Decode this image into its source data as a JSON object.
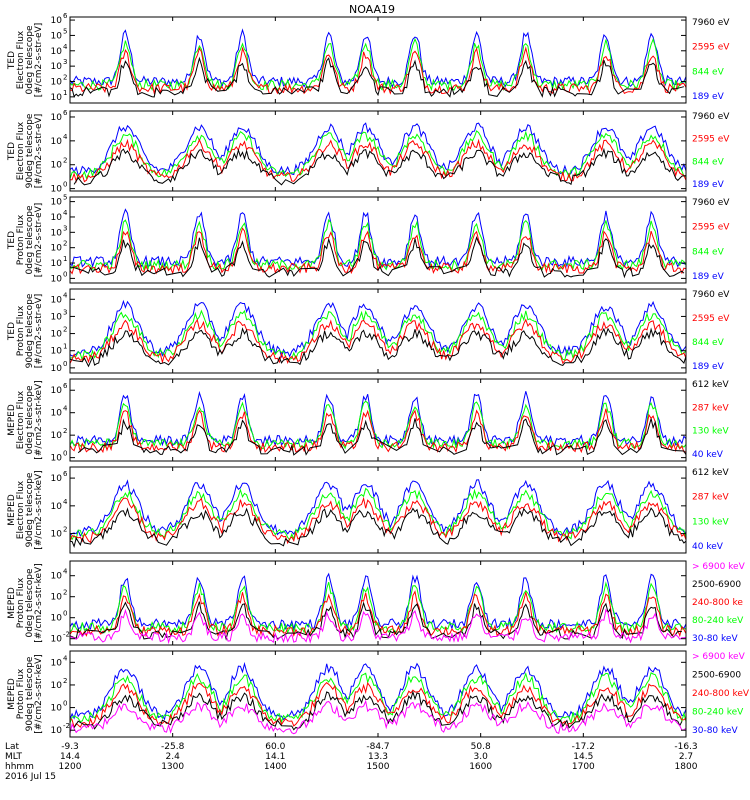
{
  "title": "NOAA19",
  "colors": {
    "blue": "#0000ff",
    "red": "#ff0000",
    "green": "#00ff00",
    "black": "#000000",
    "magenta": "#ff00ff"
  },
  "chart_data": {
    "type": "line",
    "title": "NOAA19",
    "x_ticks": [
      "1200",
      "1300",
      "1400",
      "1500",
      "1600",
      "1700",
      "1800"
    ],
    "x_axis_rows": [
      {
        "label": "Lat",
        "values": [
          "-9.3",
          "-25.8",
          "60.0",
          "-84.7",
          "50.8",
          "-17.2",
          "-16.3"
        ]
      },
      {
        "label": "MLT",
        "values": [
          "14.4",
          "2.4",
          "14.1",
          "13.3",
          "3.0",
          "14.5",
          "2.7"
        ]
      },
      {
        "label": "hhmm",
        "values": [
          "1200",
          "1300",
          "1400",
          "1500",
          "1600",
          "1700",
          "1800"
        ]
      }
    ],
    "date_label": "2016 Jul 15",
    "panels": [
      {
        "ylabel": [
          "TED",
          "Electron Flux",
          "0deg telescope",
          "[#/cm2-s-str-eV]"
        ],
        "yticks": [
          {
            "e": 1,
            "v": "10"
          },
          {
            "e": 2,
            "v": "10"
          },
          {
            "e": 3,
            "v": "10"
          },
          {
            "e": 4,
            "v": "10"
          },
          {
            "e": 5,
            "v": "10"
          },
          {
            "e": 6,
            "v": "10"
          }
        ],
        "ymin_exp": 0.6,
        "ymax_exp": 6.2,
        "legend": [
          {
            "label": "7960 eV",
            "color": "black"
          },
          {
            "label": "2595 eV",
            "color": "red"
          },
          {
            "label": "844 eV",
            "color": "green"
          },
          {
            "label": "189 eV",
            "color": "blue"
          }
        ]
      },
      {
        "ylabel": [
          "TED",
          "Electron Flux",
          "90deg telescope",
          "[#/cm2-s-str-eV]"
        ],
        "yticks": [
          {
            "e": 0,
            "v": "10"
          },
          {
            "e": 2,
            "v": "10"
          },
          {
            "e": 4,
            "v": "10"
          },
          {
            "e": 6,
            "v": "10"
          }
        ],
        "ymin_exp": -0.2,
        "ymax_exp": 6.5,
        "legend": [
          {
            "label": "7960 eV",
            "color": "black"
          },
          {
            "label": "2595 eV",
            "color": "red"
          },
          {
            "label": "844 eV",
            "color": "green"
          },
          {
            "label": "189 eV",
            "color": "blue"
          }
        ]
      },
      {
        "ylabel": [
          "TED",
          "Proton Flux",
          "0deg telescope",
          "[#/cm2-s-str-eV]"
        ],
        "yticks": [
          {
            "e": 0,
            "v": "10"
          },
          {
            "e": 1,
            "v": "10"
          },
          {
            "e": 2,
            "v": "10"
          },
          {
            "e": 3,
            "v": "10"
          },
          {
            "e": 4,
            "v": "10"
          },
          {
            "e": 5,
            "v": "10"
          }
        ],
        "ymin_exp": -0.3,
        "ymax_exp": 5.3,
        "legend": [
          {
            "label": "7960 eV",
            "color": "black"
          },
          {
            "label": "2595 eV",
            "color": "red"
          },
          {
            "label": "844 eV",
            "color": "green"
          },
          {
            "label": "189 eV",
            "color": "blue"
          }
        ]
      },
      {
        "ylabel": [
          "TED",
          "Proton Flux",
          "90deg telescope",
          "[#/cm2-s-str-eV]"
        ],
        "yticks": [
          {
            "e": 0,
            "v": "10"
          },
          {
            "e": 1,
            "v": "10"
          },
          {
            "e": 2,
            "v": "10"
          },
          {
            "e": 3,
            "v": "10"
          },
          {
            "e": 4,
            "v": "10"
          }
        ],
        "ymin_exp": -0.3,
        "ymax_exp": 4.6,
        "legend": [
          {
            "label": "7960 eV",
            "color": "black"
          },
          {
            "label": "2595 eV",
            "color": "red"
          },
          {
            "label": "844 eV",
            "color": "green"
          },
          {
            "label": "189 eV",
            "color": "blue"
          }
        ]
      },
      {
        "ylabel": [
          "MEPED",
          "Electron Flux",
          "0deg telescope",
          "[#/cm2-s-str-keV]"
        ],
        "yticks": [
          {
            "e": 0,
            "v": "10"
          },
          {
            "e": 2,
            "v": "10"
          },
          {
            "e": 4,
            "v": "10"
          },
          {
            "e": 6,
            "v": "10"
          }
        ],
        "ymin_exp": -0.3,
        "ymax_exp": 7.0,
        "legend": [
          {
            "label": "612 keV",
            "color": "black"
          },
          {
            "label": "287 keV",
            "color": "red"
          },
          {
            "label": "130 keV",
            "color": "green"
          },
          {
            "label": "40 keV",
            "color": "blue"
          }
        ]
      },
      {
        "ylabel": [
          "MEPED",
          "Electron Flux",
          "90deg telescope",
          "[#/cm2-s-str-keV]"
        ],
        "yticks": [
          {
            "e": 0,
            "v": "10"
          },
          {
            "e": 2,
            "v": "10"
          },
          {
            "e": 4,
            "v": "10"
          },
          {
            "e": 6,
            "v": "10"
          }
        ],
        "ymin_exp": 0.6,
        "ymax_exp": 6.8,
        "legend": [
          {
            "label": "612 keV",
            "color": "black"
          },
          {
            "label": "287 keV",
            "color": "red"
          },
          {
            "label": "130 keV",
            "color": "green"
          },
          {
            "label": "40 keV",
            "color": "blue"
          }
        ]
      },
      {
        "ylabel": [
          "MEPED",
          "Proton Flux",
          "0deg telescope",
          "[#/cm2-s-str-keV]"
        ],
        "yticks": [
          {
            "e": -2,
            "v": "10"
          },
          {
            "e": 0,
            "v": "10"
          },
          {
            "e": 2,
            "v": "10"
          },
          {
            "e": 4,
            "v": "10"
          }
        ],
        "ymin_exp": -2.6,
        "ymax_exp": 5.4,
        "legend": [
          {
            "label": "> 6900 keV",
            "color": "magenta"
          },
          {
            "label": "2500-6900",
            "color": "black"
          },
          {
            "label": "240-800 ke",
            "color": "red"
          },
          {
            "label": "80-240 keV",
            "color": "green"
          },
          {
            "label": "30-80 keV",
            "color": "blue"
          }
        ]
      },
      {
        "ylabel": [
          "MEPED",
          "Proton Flux",
          "90deg telescope",
          "[#/cm2-s-str-keV]"
        ],
        "yticks": [
          {
            "e": -2,
            "v": "10"
          },
          {
            "e": 0,
            "v": "10"
          },
          {
            "e": 2,
            "v": "10"
          },
          {
            "e": 4,
            "v": "10"
          }
        ],
        "ymin_exp": -2.6,
        "ymax_exp": 5.0,
        "legend": [
          {
            "label": "> 6900 keV",
            "color": "magenta"
          },
          {
            "label": "2500-6900",
            "color": "black"
          },
          {
            "label": "240-800 keV",
            "color": "red"
          },
          {
            "label": "80-240 keV",
            "color": "green"
          },
          {
            "label": "30-80 keV",
            "color": "blue"
          }
        ]
      }
    ]
  }
}
